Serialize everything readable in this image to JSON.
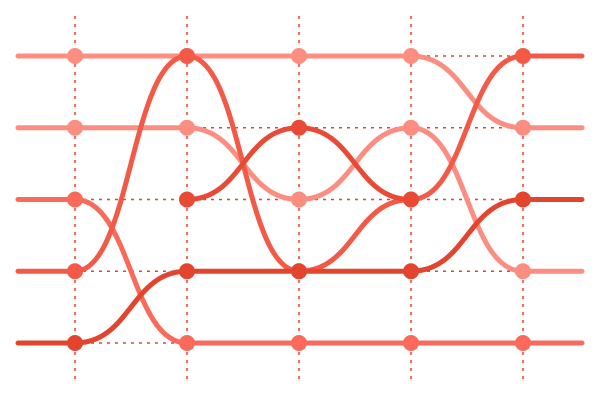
{
  "chart_data": {
    "type": "line",
    "subtype": "bump",
    "title": "",
    "xlabel": "",
    "ylabel": "",
    "x": [
      1,
      2,
      3,
      4,
      5
    ],
    "ylim": [
      1,
      5
    ],
    "y_reversed": true,
    "grid": {
      "vertical": true,
      "horizontal": true,
      "style": "dashed",
      "color": "#e0442f"
    },
    "legend": "none",
    "series": [
      {
        "ranks": [
          1,
          1,
          1,
          1,
          2
        ],
        "color": "#fb8d81"
      },
      {
        "ranks": [
          2,
          2,
          3,
          2,
          4
        ],
        "color": "#fb8d81"
      },
      {
        "ranks": [
          3,
          5,
          5,
          5,
          5
        ],
        "color": "#f96a5a"
      },
      {
        "ranks": [
          4,
          1,
          4,
          3,
          1
        ],
        "color": "#f25a47"
      },
      {
        "ranks": [
          5,
          4,
          4,
          4,
          3
        ],
        "color": "#e3442e"
      },
      {
        "ranks": [
          0,
          3,
          2,
          3,
          0
        ],
        "color": "#e94a36"
      }
    ]
  }
}
